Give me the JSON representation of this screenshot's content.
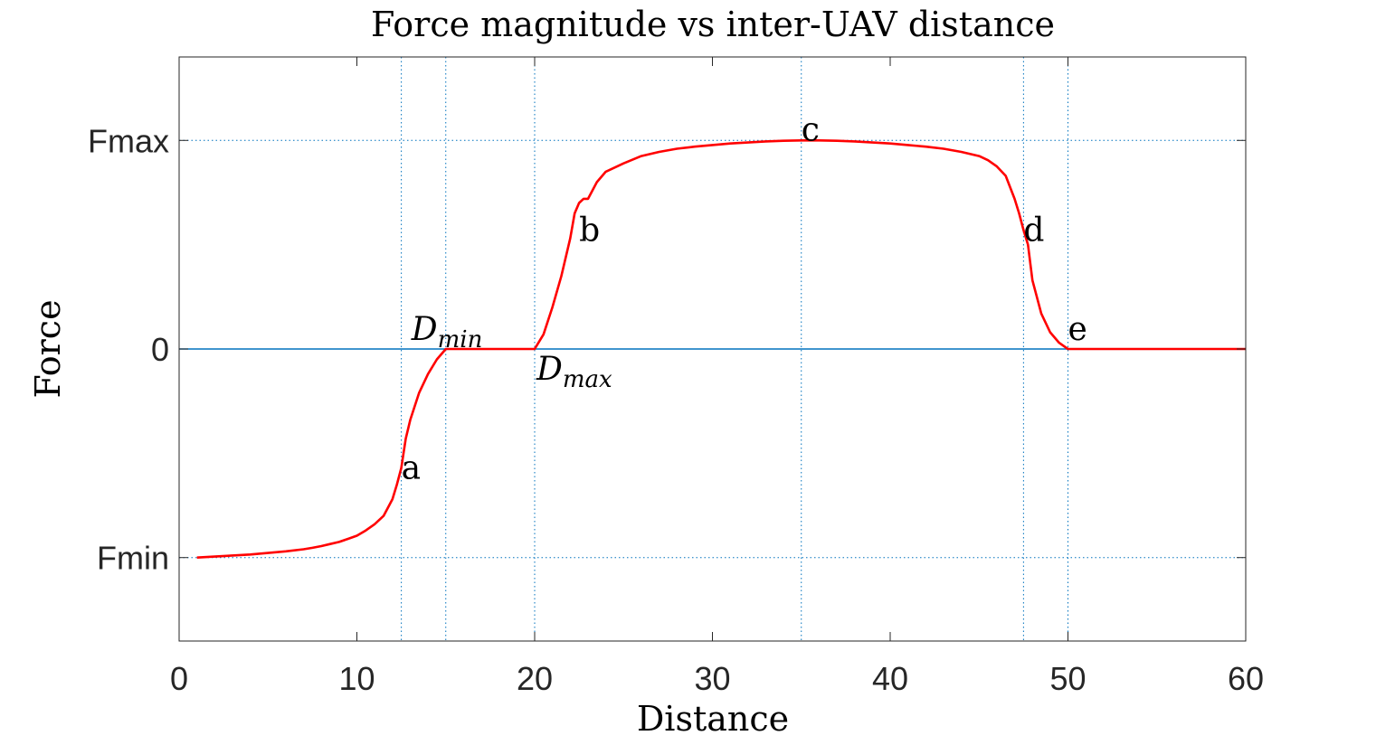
{
  "chart_data": {
    "type": "line",
    "title": "Force magnitude vs inter-UAV distance",
    "xlabel": "Distance",
    "ylabel": "Force",
    "xlim": [
      0,
      60
    ],
    "ylim": [
      -1.4,
      1.4
    ],
    "x_ticks": [
      0,
      10,
      20,
      30,
      40,
      50,
      60
    ],
    "x_tick_labels": [
      "0",
      "10",
      "20",
      "30",
      "40",
      "50",
      "60"
    ],
    "y_ticks": [
      -1,
      0,
      1
    ],
    "y_tick_labels": [
      "Fmin",
      "0",
      "Fmax"
    ],
    "grid": "dotted reference lines",
    "reference_lines": {
      "vertical_x": [
        12.5,
        15,
        20,
        35,
        47.5,
        50
      ],
      "horizontal_y": [
        -1,
        1
      ]
    },
    "series": [
      {
        "color": "#ff0000",
        "x": [
          1,
          2,
          3,
          4,
          5,
          6,
          7,
          7.5,
          8,
          8.5,
          9,
          9.5,
          10,
          10.5,
          11,
          11.5,
          12,
          12.25,
          12.5,
          12.75,
          13,
          13.5,
          14,
          14.5,
          15,
          16,
          17,
          18,
          19,
          20,
          20.5,
          21,
          21.5,
          22,
          22.25,
          22.5,
          22.75,
          23,
          23.5,
          24,
          25,
          26,
          27,
          28,
          29,
          30,
          31,
          32,
          33,
          34,
          35,
          36,
          37,
          38,
          39,
          40,
          41,
          42,
          43,
          44,
          45,
          45.5,
          46,
          46.5,
          47,
          47.25,
          47.5,
          47.75,
          48,
          48.5,
          49,
          49.5,
          50,
          51,
          52,
          54,
          56,
          58,
          60
        ],
        "y": [
          -1.0,
          -0.995,
          -0.99,
          -0.985,
          -0.978,
          -0.97,
          -0.96,
          -0.953,
          -0.945,
          -0.935,
          -0.925,
          -0.91,
          -0.895,
          -0.87,
          -0.84,
          -0.8,
          -0.72,
          -0.65,
          -0.57,
          -0.43,
          -0.34,
          -0.21,
          -0.12,
          -0.05,
          0.0,
          0.0,
          0.0,
          0.0,
          0.0,
          0.0,
          0.07,
          0.2,
          0.35,
          0.53,
          0.65,
          0.7,
          0.72,
          0.72,
          0.8,
          0.85,
          0.89,
          0.925,
          0.945,
          0.96,
          0.97,
          0.978,
          0.985,
          0.99,
          0.995,
          0.998,
          1.0,
          1.0,
          0.998,
          0.995,
          0.99,
          0.985,
          0.978,
          0.97,
          0.96,
          0.945,
          0.925,
          0.905,
          0.875,
          0.83,
          0.72,
          0.65,
          0.57,
          0.5,
          0.33,
          0.17,
          0.08,
          0.03,
          0.0,
          0.0,
          0.0,
          0.0,
          0.0,
          0.0,
          0.0
        ]
      }
    ],
    "annotations": [
      {
        "text": "a",
        "x": 12.5,
        "y": -0.57
      },
      {
        "text": "b",
        "x": 22.5,
        "y": 0.57
      },
      {
        "text": "c",
        "x": 35,
        "y": 1.0
      },
      {
        "text": "d",
        "x": 47.5,
        "y": 0.57
      },
      {
        "text": "e",
        "x": 50,
        "y": 0.0
      },
      {
        "text": "D",
        "subscript": "min",
        "x": 15,
        "y": 0.0
      },
      {
        "text": "D",
        "subscript": "max",
        "x": 20,
        "y": 0.0
      }
    ],
    "zero_line_color": "#0072bd",
    "ref_line_color": "#0072bd"
  }
}
